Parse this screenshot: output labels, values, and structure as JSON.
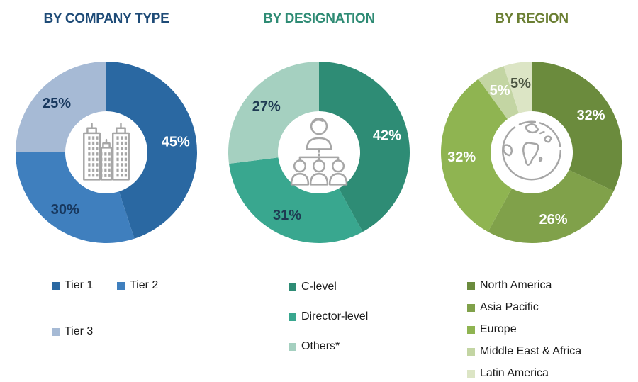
{
  "background": "#FFFFFF",
  "icon_color": "#A6A6A6",
  "legend_text_color": "#1A1A1A",
  "chart_data": [
    {
      "type": "pie",
      "subtype": "donut",
      "title": "BY COMPANY TYPE",
      "title_color": "#1E4B77",
      "center_icon": "buildings-icon",
      "categories": [
        "Tier 1",
        "Tier 2",
        "Tier 3"
      ],
      "values": [
        45,
        30,
        25
      ],
      "value_labels": [
        "45%",
        "30%",
        "25%"
      ],
      "colors": [
        "#2A68A2",
        "#3F7FBE",
        "#A6BAD5"
      ],
      "value_label_colors": [
        "#FFFFFF",
        "#17375D",
        "#17375D"
      ],
      "start_angle_deg": 0,
      "direction": "clockwise",
      "legend_position": "bottom",
      "legend_columns": 2
    },
    {
      "type": "pie",
      "subtype": "donut",
      "title": "BY DESIGNATION",
      "title_color": "#2E8B74",
      "center_icon": "org-chart-icon",
      "categories": [
        "C-level",
        "Director-level",
        "Others*"
      ],
      "values": [
        42,
        31,
        27
      ],
      "value_labels": [
        "42%",
        "31%",
        "27%"
      ],
      "colors": [
        "#2E8C75",
        "#39A78F",
        "#A5D0C0"
      ],
      "value_label_colors": [
        "#FFFFFF",
        "#1E3A52",
        "#1E3A52"
      ],
      "start_angle_deg": 0,
      "direction": "clockwise",
      "legend_position": "bottom",
      "legend_columns": 1
    },
    {
      "type": "pie",
      "subtype": "donut",
      "title": "BY REGION",
      "title_color": "#6B7F33",
      "center_icon": "globe-icon",
      "categories": [
        "North America",
        "Asia Pacific",
        "Europe",
        "Middle East & Africa",
        "Latin America"
      ],
      "values": [
        32,
        26,
        32,
        5,
        5
      ],
      "value_labels": [
        "32%",
        "26%",
        "32%",
        "5%",
        "5%"
      ],
      "colors": [
        "#6B8B3D",
        "#80A14A",
        "#8FB451",
        "#C3D5A3",
        "#DCE5C5"
      ],
      "value_label_colors": [
        "#FFFFFF",
        "#FFFFFF",
        "#FFFFFF",
        "#FFFFFF",
        "#4A5340"
      ],
      "start_angle_deg": 0,
      "direction": "clockwise",
      "legend_position": "bottom",
      "legend_columns": 1
    }
  ]
}
